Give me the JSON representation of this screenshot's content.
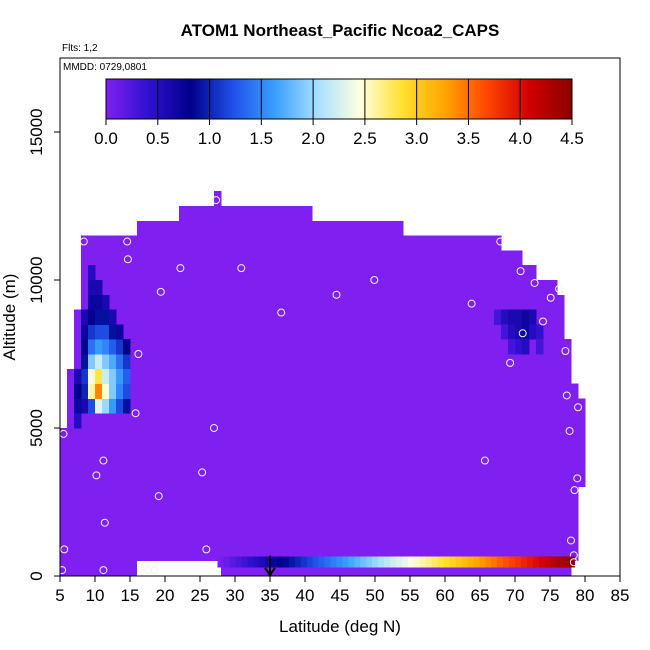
{
  "chart_data": {
    "type": "heatmap",
    "title": "ATOM1 Northeast_Pacific Ncoa2_CAPS",
    "flights_note": "Flts: 1,2",
    "dates_note": "MMDD: 0729,0801",
    "xlabel": "Latitude (deg N)",
    "ylabel": "Altitude (m)",
    "xlim": [
      5,
      85
    ],
    "ylim": [
      0,
      17500
    ],
    "x_ticks": [
      5,
      10,
      15,
      20,
      25,
      30,
      35,
      40,
      45,
      50,
      55,
      60,
      65,
      70,
      75,
      80,
      85
    ],
    "x_tick_labels": [
      "5",
      "10",
      "15",
      "20",
      "25",
      "30",
      "35",
      "40",
      "45",
      "50",
      "55",
      "60",
      "65",
      "70",
      "75",
      "80",
      "85"
    ],
    "y_ticks": [
      0,
      5000,
      10000,
      15000
    ],
    "y_tick_labels": [
      "0",
      "5000",
      "10000",
      "15000"
    ],
    "colorbar": {
      "min": 0.0,
      "max": 4.5,
      "ticks": [
        0.0,
        0.5,
        1.0,
        1.5,
        2.0,
        2.5,
        3.0,
        3.5,
        4.0,
        4.5
      ],
      "tick_labels": [
        "0.0",
        "0.5",
        "1.0",
        "1.5",
        "2.0",
        "2.5",
        "3.0",
        "3.5",
        "4.0",
        "4.5"
      ],
      "colors": [
        "#7f20f0",
        "#3010d0",
        "#00008b",
        "#2050e8",
        "#3aa0ff",
        "#a8e0ff",
        "#ffffe0",
        "#ffe030",
        "#ffa500",
        "#ff4500",
        "#d00000",
        "#8b0000"
      ]
    },
    "coverage_bands": [
      {
        "lat_from": 5,
        "lat_to": 6,
        "alt_from": 0,
        "alt_to": 5000
      },
      {
        "lat_from": 6,
        "lat_to": 7,
        "alt_from": 0,
        "alt_to": 7000
      },
      {
        "lat_from": 7,
        "lat_to": 8,
        "alt_from": 0,
        "alt_to": 9000
      },
      {
        "lat_from": 8,
        "lat_to": 16,
        "alt_from": 0,
        "alt_to": 11500
      },
      {
        "lat_from": 16,
        "lat_to": 22,
        "alt_from": 0,
        "alt_to": 12000
      },
      {
        "lat_from": 22,
        "lat_to": 27,
        "alt_from": 0,
        "alt_to": 12500
      },
      {
        "lat_from": 27,
        "lat_to": 28,
        "alt_from": 0,
        "alt_to": 13000
      },
      {
        "lat_from": 28,
        "lat_to": 41,
        "alt_from": 0,
        "alt_to": 12500
      },
      {
        "lat_from": 41,
        "lat_to": 54,
        "alt_from": 0,
        "alt_to": 12000
      },
      {
        "lat_from": 54,
        "lat_to": 68,
        "alt_from": 0,
        "alt_to": 11500
      },
      {
        "lat_from": 68,
        "lat_to": 71,
        "alt_from": 0,
        "alt_to": 11000
      },
      {
        "lat_from": 71,
        "lat_to": 73,
        "alt_from": 0,
        "alt_to": 10500
      },
      {
        "lat_from": 73,
        "lat_to": 76,
        "alt_from": 0,
        "alt_to": 10000
      },
      {
        "lat_from": 76,
        "lat_to": 77,
        "alt_from": 0,
        "alt_to": 9500
      },
      {
        "lat_from": 77,
        "lat_to": 78,
        "alt_from": 0,
        "alt_to": 8000
      },
      {
        "lat_from": 78,
        "lat_to": 79,
        "alt_from": 500,
        "alt_to": 6500
      },
      {
        "lat_from": 79,
        "lat_to": 80,
        "alt_from": 3000,
        "alt_to": 6000
      }
    ],
    "blank_band": {
      "lat_from": 16,
      "lat_to": 28,
      "alt_from": 0,
      "alt_to": 500
    },
    "anomaly_cells": [
      {
        "lat": 8,
        "alt": 5500,
        "value": 0.6
      },
      {
        "lat": 8,
        "alt": 6000,
        "value": 1.0
      },
      {
        "lat": 8,
        "alt": 6500,
        "value": 1.1
      },
      {
        "lat": 8,
        "alt": 7000,
        "value": 0.9
      },
      {
        "lat": 8,
        "alt": 7500,
        "value": 0.8
      },
      {
        "lat": 8,
        "alt": 8000,
        "value": 0.7
      },
      {
        "lat": 8,
        "alt": 8500,
        "value": 0.6
      },
      {
        "lat": 9,
        "alt": 5500,
        "value": 1.2
      },
      {
        "lat": 9,
        "alt": 6000,
        "value": 2.6
      },
      {
        "lat": 9,
        "alt": 6500,
        "value": 2.4
      },
      {
        "lat": 9,
        "alt": 7000,
        "value": 1.9
      },
      {
        "lat": 9,
        "alt": 7500,
        "value": 1.4
      },
      {
        "lat": 9,
        "alt": 8000,
        "value": 1.1
      },
      {
        "lat": 9,
        "alt": 8500,
        "value": 0.8
      },
      {
        "lat": 9,
        "alt": 9000,
        "value": 0.7
      },
      {
        "lat": 9,
        "alt": 9500,
        "value": 0.6
      },
      {
        "lat": 9,
        "alt": 10000,
        "value": 0.5
      },
      {
        "lat": 10,
        "alt": 5500,
        "value": 2.3
      },
      {
        "lat": 10,
        "alt": 6000,
        "value": 3.4
      },
      {
        "lat": 10,
        "alt": 6500,
        "value": 2.8
      },
      {
        "lat": 10,
        "alt": 7000,
        "value": 2.2
      },
      {
        "lat": 10,
        "alt": 7500,
        "value": 1.6
      },
      {
        "lat": 10,
        "alt": 8000,
        "value": 1.2
      },
      {
        "lat": 10,
        "alt": 8500,
        "value": 0.9
      },
      {
        "lat": 10,
        "alt": 9000,
        "value": 0.7
      },
      {
        "lat": 10,
        "alt": 9500,
        "value": 0.6
      },
      {
        "lat": 11,
        "alt": 5500,
        "value": 2.0
      },
      {
        "lat": 11,
        "alt": 6000,
        "value": 2.5
      },
      {
        "lat": 11,
        "alt": 6500,
        "value": 2.2
      },
      {
        "lat": 11,
        "alt": 7000,
        "value": 1.9
      },
      {
        "lat": 11,
        "alt": 7500,
        "value": 1.5
      },
      {
        "lat": 11,
        "alt": 8000,
        "value": 1.2
      },
      {
        "lat": 11,
        "alt": 8500,
        "value": 0.9
      },
      {
        "lat": 11,
        "alt": 9000,
        "value": 0.6
      },
      {
        "lat": 12,
        "alt": 5500,
        "value": 1.6
      },
      {
        "lat": 12,
        "alt": 6000,
        "value": 1.9
      },
      {
        "lat": 12,
        "alt": 6500,
        "value": 1.9
      },
      {
        "lat": 12,
        "alt": 7000,
        "value": 1.7
      },
      {
        "lat": 12,
        "alt": 7500,
        "value": 1.3
      },
      {
        "lat": 12,
        "alt": 8000,
        "value": 0.9
      },
      {
        "lat": 12,
        "alt": 8500,
        "value": 0.6
      },
      {
        "lat": 13,
        "alt": 5500,
        "value": 1.2
      },
      {
        "lat": 13,
        "alt": 6000,
        "value": 1.5
      },
      {
        "lat": 13,
        "alt": 6500,
        "value": 1.6
      },
      {
        "lat": 13,
        "alt": 7000,
        "value": 1.4
      },
      {
        "lat": 13,
        "alt": 7500,
        "value": 1.1
      },
      {
        "lat": 13,
        "alt": 8000,
        "value": 0.7
      },
      {
        "lat": 14,
        "alt": 5500,
        "value": 0.9
      },
      {
        "lat": 14,
        "alt": 6000,
        "value": 1.2
      },
      {
        "lat": 14,
        "alt": 6500,
        "value": 1.3
      },
      {
        "lat": 14,
        "alt": 7000,
        "value": 1.1
      },
      {
        "lat": 14,
        "alt": 7500,
        "value": 0.8
      },
      {
        "lat": 7,
        "alt": 5000,
        "value": 0.5
      },
      {
        "lat": 7,
        "alt": 5500,
        "value": 0.7
      },
      {
        "lat": 7,
        "alt": 6000,
        "value": 0.8
      },
      {
        "lat": 7,
        "alt": 6500,
        "value": 0.6
      },
      {
        "lat": 67,
        "alt": 8500,
        "value": 0.3
      },
      {
        "lat": 68,
        "alt": 8500,
        "value": 0.5
      },
      {
        "lat": 68,
        "alt": 8000,
        "value": 0.3
      },
      {
        "lat": 69,
        "alt": 8500,
        "value": 0.6
      },
      {
        "lat": 69,
        "alt": 8000,
        "value": 0.5
      },
      {
        "lat": 69,
        "alt": 7500,
        "value": 0.3
      },
      {
        "lat": 70,
        "alt": 8500,
        "value": 0.6
      },
      {
        "lat": 70,
        "alt": 8000,
        "value": 0.6
      },
      {
        "lat": 70,
        "alt": 7500,
        "value": 0.4
      },
      {
        "lat": 71,
        "alt": 8500,
        "value": 0.7
      },
      {
        "lat": 71,
        "alt": 8000,
        "value": 0.7
      },
      {
        "lat": 71,
        "alt": 7500,
        "value": 0.5
      },
      {
        "lat": 72,
        "alt": 8500,
        "value": 0.6
      },
      {
        "lat": 72,
        "alt": 8000,
        "value": 0.5
      },
      {
        "lat": 73,
        "alt": 8000,
        "value": 0.4
      },
      {
        "lat": 73,
        "alt": 7500,
        "value": 0.3
      }
    ],
    "sample_points": [
      {
        "lat": 5.3,
        "alt": 200
      },
      {
        "lat": 5.5,
        "alt": 4800
      },
      {
        "lat": 5.6,
        "alt": 900
      },
      {
        "lat": 8.4,
        "alt": 11300
      },
      {
        "lat": 10.2,
        "alt": 3400
      },
      {
        "lat": 11.2,
        "alt": 3900
      },
      {
        "lat": 11.2,
        "alt": 200
      },
      {
        "lat": 11.4,
        "alt": 1800
      },
      {
        "lat": 14.6,
        "alt": 11300
      },
      {
        "lat": 14.7,
        "alt": 10700
      },
      {
        "lat": 15.8,
        "alt": 5500
      },
      {
        "lat": 16.2,
        "alt": 7500
      },
      {
        "lat": 17.6,
        "alt": 200
      },
      {
        "lat": 18.5,
        "alt": 200
      },
      {
        "lat": 19.1,
        "alt": 2700
      },
      {
        "lat": 19.4,
        "alt": 9600
      },
      {
        "lat": 22.2,
        "alt": 10400
      },
      {
        "lat": 25.3,
        "alt": 3500
      },
      {
        "lat": 25.9,
        "alt": 900
      },
      {
        "lat": 27.0,
        "alt": 5000
      },
      {
        "lat": 27.3,
        "alt": 12700
      },
      {
        "lat": 30.9,
        "alt": 10400
      },
      {
        "lat": 36.6,
        "alt": 8900
      },
      {
        "lat": 44.5,
        "alt": 9500
      },
      {
        "lat": 49.9,
        "alt": 10000
      },
      {
        "lat": 63.8,
        "alt": 9200
      },
      {
        "lat": 65.7,
        "alt": 3900
      },
      {
        "lat": 67.9,
        "alt": 11300
      },
      {
        "lat": 69.3,
        "alt": 7200
      },
      {
        "lat": 70.8,
        "alt": 10300
      },
      {
        "lat": 71.1,
        "alt": 8200
      },
      {
        "lat": 72.8,
        "alt": 9900
      },
      {
        "lat": 74.0,
        "alt": 8600
      },
      {
        "lat": 75.1,
        "alt": 9400
      },
      {
        "lat": 76.3,
        "alt": 9700
      },
      {
        "lat": 77.2,
        "alt": 7600
      },
      {
        "lat": 77.4,
        "alt": 6100
      },
      {
        "lat": 77.8,
        "alt": 4900
      },
      {
        "lat": 78.0,
        "alt": 1200
      },
      {
        "lat": 78.4,
        "alt": 700
      },
      {
        "lat": 78.5,
        "alt": 2900
      },
      {
        "lat": 78.9,
        "alt": 3300
      },
      {
        "lat": 79.0,
        "alt": 5700
      }
    ],
    "marker_arrow_lat": 35
  }
}
